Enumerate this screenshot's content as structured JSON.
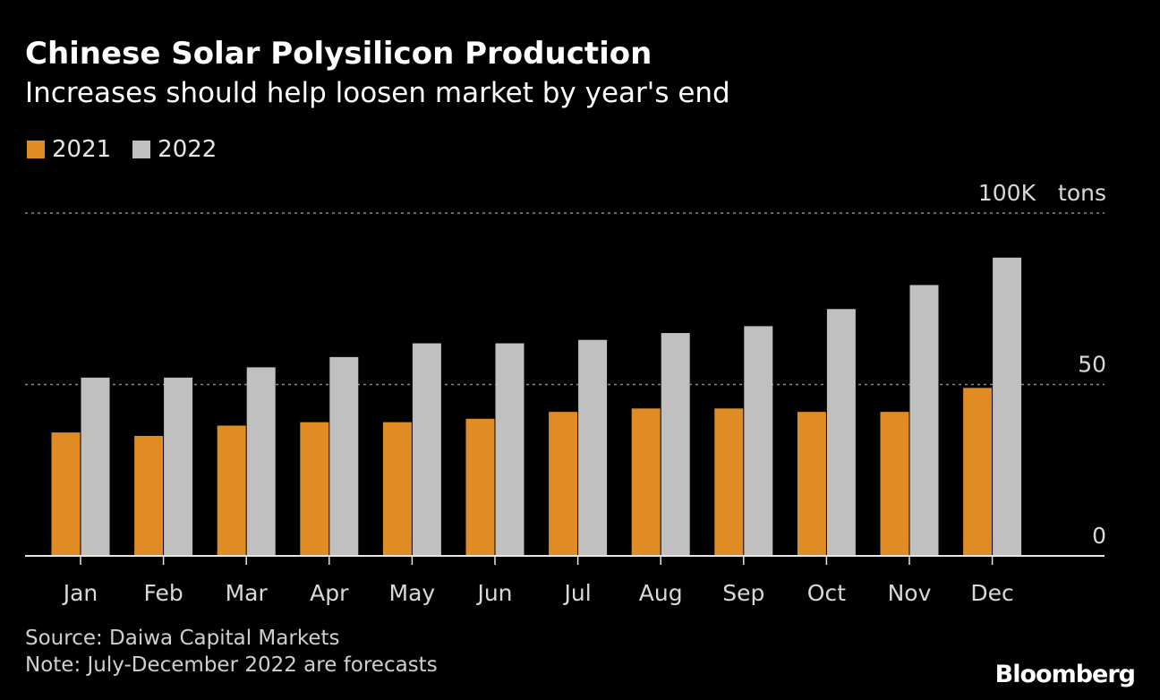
{
  "chart_data": {
    "type": "bar",
    "title": "Chinese Solar Polysilicon Production",
    "subtitle": "Increases should help loosen market by year's end",
    "categories": [
      "Jan",
      "Feb",
      "Mar",
      "Apr",
      "May",
      "Jun",
      "Jul",
      "Aug",
      "Sep",
      "Oct",
      "Nov",
      "Dec"
    ],
    "series": [
      {
        "name": "2021",
        "color": "#e08b24",
        "values": [
          36,
          35,
          38,
          39,
          39,
          40,
          42,
          43,
          43,
          42,
          42,
          49
        ]
      },
      {
        "name": "2022",
        "color": "#c0c0c0",
        "values": [
          52,
          52,
          55,
          58,
          62,
          62,
          63,
          65,
          67,
          72,
          79,
          87
        ]
      }
    ],
    "yticks": [
      {
        "value": 0,
        "label": "0"
      },
      {
        "value": 50,
        "label": "50"
      },
      {
        "value": 100,
        "label": "100K"
      }
    ],
    "yunit": "tons",
    "ylim": [
      0,
      100
    ],
    "grid": true
  },
  "footer": {
    "source": "Source: Daiwa Capital Markets",
    "note": "Note: July-December 2022 are forecasts"
  },
  "brand": "Bloomberg"
}
